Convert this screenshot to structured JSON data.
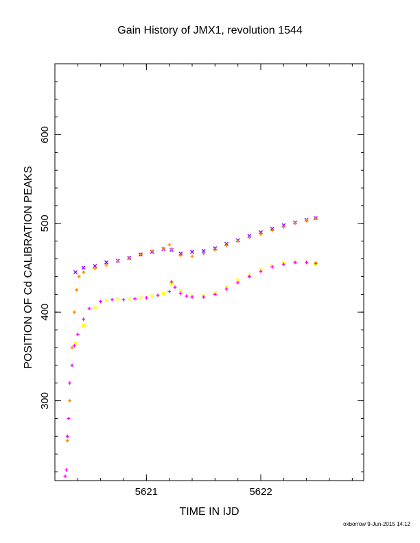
{
  "chart_data": {
    "type": "scatter",
    "title": "Gain History of JMX1, revolution 1544",
    "xlabel": "TIME IN IJD",
    "ylabel": "POSITION OF Cd CALIBRATION PEAKS",
    "xlim": [
      5620.2,
      5622.9
    ],
    "ylim": [
      210,
      680
    ],
    "xticks": [
      5621,
      5622
    ],
    "yticks": [
      300,
      400,
      500,
      600
    ],
    "grid": false,
    "legend": "none",
    "series": [
      {
        "marker": "x",
        "color": "#8800ff",
        "x": [
          5620.38,
          5620.45,
          5620.55,
          5620.65,
          5620.75,
          5620.85,
          5620.95,
          5621.05,
          5621.15,
          5621.22,
          5621.3,
          5621.4,
          5621.5,
          5621.6,
          5621.7,
          5621.8,
          5621.9,
          5622.0,
          5622.1,
          5622.2,
          5622.3,
          5622.4,
          5622.48
        ],
        "y": [
          445,
          450,
          452,
          456,
          458,
          461,
          465,
          468,
          471,
          470,
          466,
          468,
          469,
          472,
          477,
          481,
          486,
          490,
          494,
          498,
          501,
          504,
          506
        ]
      },
      {
        "marker": "+",
        "color": "#ff8800",
        "x": [
          5620.31,
          5620.33,
          5620.35,
          5620.37,
          5620.39,
          5620.41,
          5620.45,
          5620.55,
          5620.65,
          5620.75,
          5620.85,
          5620.95,
          5621.05,
          5621.15,
          5621.2,
          5621.22,
          5621.3,
          5621.4,
          5621.5,
          5621.6,
          5621.7,
          5621.8,
          5621.9,
          5622.0,
          5622.1,
          5622.2,
          5622.3,
          5622.4,
          5622.48
        ],
        "y": [
          255,
          300,
          360,
          400,
          425,
          440,
          445,
          449,
          453,
          457,
          461,
          465,
          469,
          472,
          476,
          471,
          464,
          463,
          466,
          470,
          475,
          480,
          484,
          488,
          492,
          496,
          500,
          503,
          506
        ]
      },
      {
        "marker": "x",
        "color": "#ffff00",
        "x": [
          5620.38,
          5620.45,
          5620.55,
          5620.65,
          5620.75,
          5620.85,
          5620.95,
          5621.05,
          5621.15,
          5621.22,
          5621.3,
          5621.4,
          5621.5,
          5621.6,
          5621.7,
          5621.8,
          5621.9,
          5622.0,
          5622.1,
          5622.2,
          5622.3,
          5622.4,
          5622.48
        ],
        "y": [
          365,
          385,
          405,
          413,
          415,
          415,
          416,
          418,
          421,
          432,
          424,
          418,
          418,
          421,
          428,
          436,
          442,
          448,
          452,
          455,
          456,
          456,
          455
        ]
      },
      {
        "marker": "+",
        "color": "#ff00ff",
        "x": [
          5620.29,
          5620.3,
          5620.31,
          5620.32,
          5620.33,
          5620.35,
          5620.37,
          5620.4,
          5620.45,
          5620.5,
          5620.6,
          5620.7,
          5620.8,
          5620.9,
          5621.0,
          5621.1,
          5621.2,
          5621.22,
          5621.25,
          5621.3,
          5621.35,
          5621.4,
          5621.5,
          5621.6,
          5621.7,
          5621.8,
          5621.9,
          5622.0,
          5622.1,
          5622.2,
          5622.3,
          5622.4,
          5622.48
        ],
        "y": [
          215,
          222,
          260,
          280,
          320,
          340,
          362,
          375,
          392,
          404,
          412,
          414,
          414,
          415,
          416,
          419,
          423,
          434,
          428,
          421,
          418,
          417,
          417,
          420,
          426,
          433,
          440,
          446,
          451,
          454,
          456,
          456,
          455
        ]
      }
    ]
  },
  "footer": {
    "credit": "oxborrow  9-Jun-2015 14:12"
  }
}
